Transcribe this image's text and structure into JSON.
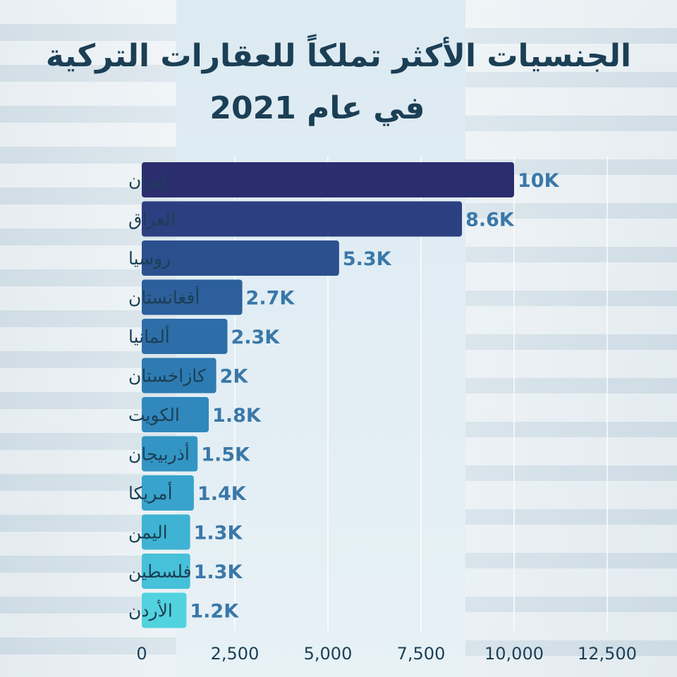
{
  "chart_data": {
    "type": "bar",
    "orientation": "horizontal",
    "title": "الجنسيات الأكثر تملكاً للعقارات التركية",
    "subtitle": "في عام  2021",
    "categories": [
      "إيران",
      "العراق",
      "روسيا",
      "أفغانستان",
      "ألمانيا",
      "كازاخستان",
      "الكويت",
      "أذربيجان",
      "أمريكا",
      "اليمن",
      "فلسطين",
      "الأردن"
    ],
    "values": [
      10000,
      8600,
      5300,
      2700,
      2300,
      2000,
      1800,
      1500,
      1400,
      1300,
      1300,
      1200
    ],
    "value_labels": [
      "10K",
      "8.6K",
      "5.3K",
      "2.7K",
      "2.3K",
      "2K",
      "1.8K",
      "1.5K",
      "1.4K",
      "1.3K",
      "1.3K",
      "1.2K"
    ],
    "xlim": [
      0,
      12500
    ],
    "x_ticks": [
      "0",
      "2,500",
      "5,000",
      "7,500",
      "10,000",
      "12,500"
    ],
    "x_tick_values": [
      0,
      2500,
      5000,
      7500,
      10000,
      12500
    ],
    "grid": true,
    "colors": [
      "#2a2e6e",
      "#2c3f80",
      "#2c4f8e",
      "#2c5f9c",
      "#2d6da8",
      "#2e7bb3",
      "#3088bc",
      "#3395c4",
      "#38a3cc",
      "#3fb3d3",
      "#46c1d9",
      "#52d2df"
    ],
    "value_label_color": "#3a78a8"
  }
}
